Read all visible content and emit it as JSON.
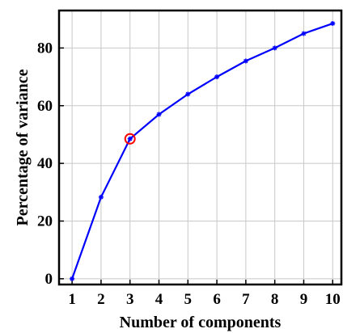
{
  "chart_data": {
    "type": "line",
    "xlabel": "Number of components",
    "ylabel": "Percentage of variance",
    "x": [
      1,
      2,
      3,
      4,
      5,
      6,
      7,
      8,
      9,
      10
    ],
    "series": [
      {
        "values": [
          0,
          28.3,
          48.5,
          57.0,
          64.0,
          70.0,
          75.5,
          80.0,
          85.0,
          88.5
        ],
        "color": "#0000ff"
      }
    ],
    "xlim": [
      0.55,
      10.3
    ],
    "ylim": [
      -2,
      93
    ],
    "xticks": [
      1,
      2,
      3,
      4,
      5,
      6,
      7,
      8,
      9,
      10
    ],
    "yticks": [
      0,
      20,
      40,
      60,
      80
    ],
    "grid": true,
    "highlight": {
      "x": 3,
      "y": 48.5,
      "color": "#ff0000"
    }
  }
}
